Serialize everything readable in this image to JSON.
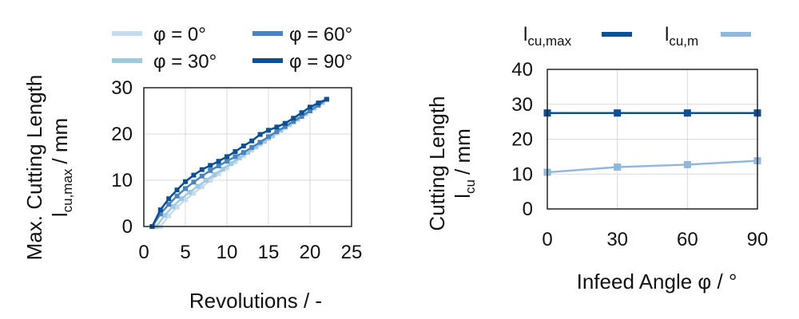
{
  "chart_data": [
    {
      "type": "line",
      "xlabel": "Revolutions / -",
      "ylabel": "Max. Cutting Length",
      "ylabel_symbol": "l",
      "ylabel_sub": "cu,max",
      "ylabel_unit": "/ mm",
      "xlim": [
        0,
        25
      ],
      "ylim": [
        0,
        30
      ],
      "xticks": [
        0,
        5,
        10,
        15,
        20,
        25
      ],
      "yticks": [
        0,
        10,
        20,
        30
      ],
      "grid": true,
      "legend_position": "top",
      "series": [
        {
          "name": "φ = 0°",
          "color": "#c6dbef",
          "x": [
            2,
            3,
            4,
            5,
            6,
            7,
            8,
            9,
            10,
            11,
            12,
            13,
            14,
            15,
            16,
            17,
            18,
            19,
            20,
            21,
            22
          ],
          "y": [
            0,
            2.3,
            4.2,
            5.8,
            7.2,
            8.6,
            10.0,
            11.4,
            12.7,
            14.0,
            15.3,
            16.5,
            17.8,
            19.0,
            20.2,
            21.4,
            22.6,
            23.8,
            25.0,
            26.3,
            27.5
          ]
        },
        {
          "name": "φ = 30°",
          "color": "#9ecae1",
          "x": [
            1.5,
            2.5,
            3.5,
            4.5,
            5.5,
            6.5,
            7.5,
            8.5,
            9.5,
            10.5,
            11.5,
            12.5,
            13.5,
            14.5,
            15.5,
            16.5,
            17.5,
            18.5,
            19.5,
            20.5,
            21.5,
            22
          ],
          "y": [
            0,
            2.4,
            4.3,
            6.0,
            7.4,
            8.7,
            10.0,
            11.2,
            12.4,
            13.6,
            14.8,
            16.0,
            17.2,
            18.4,
            19.6,
            20.8,
            22.0,
            23.2,
            24.4,
            25.6,
            26.8,
            27.5
          ]
        },
        {
          "name": "φ = 60°",
          "color": "#4a84bf",
          "x": [
            1,
            2,
            3,
            4,
            5,
            6,
            7,
            8,
            9,
            10,
            11,
            12,
            13,
            14,
            15,
            16,
            17,
            18,
            19,
            20,
            21,
            22
          ],
          "y": [
            0,
            2.7,
            4.8,
            6.6,
            8.2,
            9.6,
            10.9,
            12.1,
            13.1,
            14.1,
            15.1,
            16.0,
            17.1,
            18.2,
            19.4,
            20.5,
            21.6,
            22.7,
            23.8,
            25.0,
            26.2,
            27.5
          ]
        },
        {
          "name": "φ = 90°",
          "color": "#0b4f96",
          "x": [
            1,
            2,
            3,
            4,
            5,
            6,
            7,
            8,
            9,
            10,
            11,
            12,
            13,
            14,
            15,
            16,
            17,
            18,
            19,
            20,
            21,
            22
          ],
          "y": [
            0,
            3.6,
            6.0,
            7.9,
            9.7,
            11.1,
            12.3,
            13.2,
            14.1,
            15.1,
            16.2,
            17.4,
            18.5,
            19.9,
            20.8,
            21.5,
            22.3,
            23.4,
            24.6,
            25.8,
            26.7,
            27.5
          ]
        }
      ]
    },
    {
      "type": "line",
      "xlabel": "Infeed Angle φ / °",
      "ylabel": "Cutting Length",
      "ylabel_symbol": "l",
      "ylabel_sub": "cu",
      "ylabel_unit": "/ mm",
      "xlim": [
        0,
        90
      ],
      "ylim": [
        0,
        40
      ],
      "xticks": [
        0,
        30,
        60,
        90
      ],
      "yticks": [
        0,
        10,
        20,
        30,
        40
      ],
      "grid": true,
      "legend_position": "top",
      "series": [
        {
          "name": "l",
          "name_sub": "cu,max",
          "color": "#0b4f96",
          "x": [
            0,
            30,
            60,
            90
          ],
          "y": [
            27.5,
            27.5,
            27.5,
            27.5
          ]
        },
        {
          "name": "l",
          "name_sub": "cu,m",
          "color": "#8fb8de",
          "x": [
            0,
            30,
            60,
            90
          ],
          "y": [
            10.5,
            12.0,
            12.7,
            13.8
          ]
        }
      ]
    }
  ]
}
